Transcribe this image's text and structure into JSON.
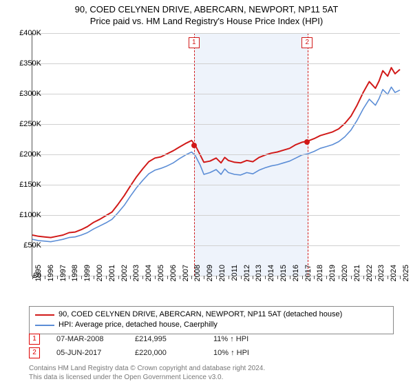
{
  "title": {
    "line1": "90, COED CELYNEN DRIVE, ABERCARN, NEWPORT, NP11 5AT",
    "line2": "Price paid vs. HM Land Registry's House Price Index (HPI)"
  },
  "chart": {
    "type": "line",
    "background_color": "#ffffff",
    "grid_color": "#d0d0d0",
    "axis_color": "#555555",
    "x": {
      "min": 1995,
      "max": 2025,
      "ticks": [
        1995,
        1996,
        1997,
        1998,
        1999,
        2000,
        2001,
        2002,
        2003,
        2004,
        2005,
        2006,
        2007,
        2008,
        2009,
        2010,
        2011,
        2012,
        2013,
        2014,
        2015,
        2016,
        2017,
        2018,
        2019,
        2020,
        2021,
        2022,
        2023,
        2024,
        2025
      ],
      "label_fontsize": 11
    },
    "y": {
      "min": 0,
      "max": 400,
      "unit_prefix": "£",
      "unit_suffix": "K",
      "ticks": [
        0,
        50,
        100,
        150,
        200,
        250,
        300,
        350,
        400
      ],
      "label_fontsize": 11
    },
    "shaded_band": {
      "from_year": 2008.19,
      "to_year": 2017.43,
      "fill": "#eef3fb"
    },
    "sale_markers": [
      {
        "n": "1",
        "year": 2008.19,
        "price_k": 215,
        "dot_color": "#d11918"
      },
      {
        "n": "2",
        "year": 2017.43,
        "price_k": 220,
        "dot_color": "#d11918"
      }
    ],
    "marker_line_color": "#d11918",
    "series": [
      {
        "name": "price_paid",
        "color": "#d11918",
        "width": 2,
        "points": [
          [
            1995,
            67
          ],
          [
            1995.5,
            65
          ],
          [
            1996,
            64
          ],
          [
            1996.5,
            63
          ],
          [
            1997,
            65
          ],
          [
            1997.5,
            67
          ],
          [
            1998,
            71
          ],
          [
            1998.5,
            72
          ],
          [
            1999,
            76
          ],
          [
            1999.5,
            81
          ],
          [
            2000,
            88
          ],
          [
            2000.5,
            93
          ],
          [
            2001,
            99
          ],
          [
            2001.5,
            105
          ],
          [
            2002,
            118
          ],
          [
            2002.5,
            132
          ],
          [
            2003,
            148
          ],
          [
            2003.5,
            163
          ],
          [
            2004,
            176
          ],
          [
            2004.5,
            188
          ],
          [
            2005,
            194
          ],
          [
            2005.5,
            196
          ],
          [
            2006,
            201
          ],
          [
            2006.5,
            206
          ],
          [
            2007,
            212
          ],
          [
            2007.5,
            218
          ],
          [
            2008,
            223
          ],
          [
            2008.3,
            215
          ],
          [
            2008.7,
            199
          ],
          [
            2009,
            187
          ],
          [
            2009.5,
            189
          ],
          [
            2010,
            194
          ],
          [
            2010.4,
            186
          ],
          [
            2010.7,
            195
          ],
          [
            2011,
            190
          ],
          [
            2011.5,
            187
          ],
          [
            2012,
            186
          ],
          [
            2012.5,
            190
          ],
          [
            2013,
            188
          ],
          [
            2013.5,
            195
          ],
          [
            2014,
            199
          ],
          [
            2014.5,
            202
          ],
          [
            2015,
            204
          ],
          [
            2015.5,
            207
          ],
          [
            2016,
            210
          ],
          [
            2016.5,
            216
          ],
          [
            2017,
            220
          ],
          [
            2017.5,
            222
          ],
          [
            2018,
            226
          ],
          [
            2018.5,
            231
          ],
          [
            2019,
            234
          ],
          [
            2019.5,
            237
          ],
          [
            2020,
            242
          ],
          [
            2020.5,
            251
          ],
          [
            2021,
            263
          ],
          [
            2021.5,
            281
          ],
          [
            2022,
            302
          ],
          [
            2022.5,
            320
          ],
          [
            2023,
            309
          ],
          [
            2023.3,
            321
          ],
          [
            2023.6,
            338
          ],
          [
            2024,
            329
          ],
          [
            2024.3,
            343
          ],
          [
            2024.6,
            333
          ],
          [
            2025,
            340
          ]
        ]
      },
      {
        "name": "hpi",
        "color": "#5b8dd6",
        "width": 1.6,
        "points": [
          [
            1995,
            60
          ],
          [
            1995.5,
            58
          ],
          [
            1996,
            57
          ],
          [
            1996.5,
            56
          ],
          [
            1997,
            58
          ],
          [
            1997.5,
            60
          ],
          [
            1998,
            63
          ],
          [
            1998.5,
            64
          ],
          [
            1999,
            67
          ],
          [
            1999.5,
            71
          ],
          [
            2000,
            77
          ],
          [
            2000.5,
            82
          ],
          [
            2001,
            87
          ],
          [
            2001.5,
            93
          ],
          [
            2002,
            104
          ],
          [
            2002.5,
            116
          ],
          [
            2003,
            131
          ],
          [
            2003.5,
            145
          ],
          [
            2004,
            157
          ],
          [
            2004.5,
            168
          ],
          [
            2005,
            174
          ],
          [
            2005.5,
            177
          ],
          [
            2006,
            181
          ],
          [
            2006.5,
            186
          ],
          [
            2007,
            193
          ],
          [
            2007.5,
            199
          ],
          [
            2008,
            204
          ],
          [
            2008.3,
            198
          ],
          [
            2008.7,
            182
          ],
          [
            2009,
            167
          ],
          [
            2009.5,
            170
          ],
          [
            2010,
            175
          ],
          [
            2010.4,
            167
          ],
          [
            2010.7,
            176
          ],
          [
            2011,
            170
          ],
          [
            2011.5,
            167
          ],
          [
            2012,
            166
          ],
          [
            2012.5,
            170
          ],
          [
            2013,
            168
          ],
          [
            2013.5,
            174
          ],
          [
            2014,
            178
          ],
          [
            2014.5,
            181
          ],
          [
            2015,
            183
          ],
          [
            2015.5,
            186
          ],
          [
            2016,
            189
          ],
          [
            2016.5,
            194
          ],
          [
            2017,
            199
          ],
          [
            2017.5,
            201
          ],
          [
            2018,
            205
          ],
          [
            2018.5,
            210
          ],
          [
            2019,
            213
          ],
          [
            2019.5,
            216
          ],
          [
            2020,
            221
          ],
          [
            2020.5,
            229
          ],
          [
            2021,
            240
          ],
          [
            2021.5,
            256
          ],
          [
            2022,
            275
          ],
          [
            2022.5,
            291
          ],
          [
            2023,
            281
          ],
          [
            2023.3,
            292
          ],
          [
            2023.6,
            307
          ],
          [
            2024,
            299
          ],
          [
            2024.3,
            311
          ],
          [
            2024.6,
            302
          ],
          [
            2025,
            306
          ]
        ]
      }
    ]
  },
  "legend": {
    "items": [
      {
        "color": "#d11918",
        "label": "90, COED CELYNEN DRIVE, ABERCARN, NEWPORT, NP11 5AT (detached house)"
      },
      {
        "color": "#5b8dd6",
        "label": "HPI: Average price, detached house, Caerphilly"
      }
    ]
  },
  "sales": [
    {
      "n": "1",
      "date": "07-MAR-2008",
      "price": "£214,995",
      "pct": "11% ↑ HPI"
    },
    {
      "n": "2",
      "date": "05-JUN-2017",
      "price": "£220,000",
      "pct": "10% ↑ HPI"
    }
  ],
  "footer": {
    "line1": "Contains HM Land Registry data © Crown copyright and database right 2024.",
    "line2": "This data is licensed under the Open Government Licence v3.0."
  }
}
